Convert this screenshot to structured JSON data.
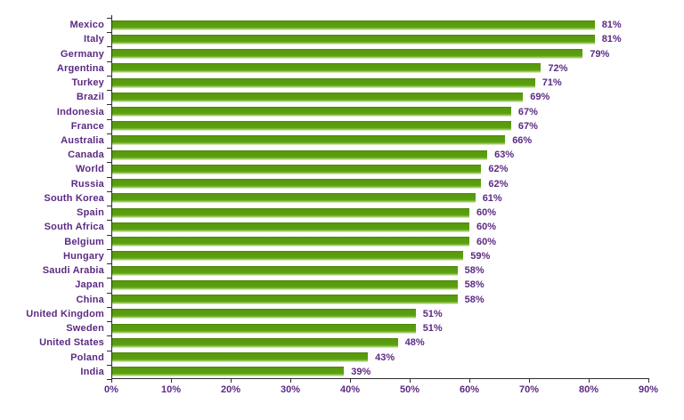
{
  "chart_data": {
    "type": "bar",
    "orientation": "horizontal",
    "title": "",
    "xlabel": "",
    "ylabel": "",
    "categories": [
      "Mexico",
      "Italy",
      "Germany",
      "Argentina",
      "Turkey",
      "Brazil",
      "Indonesia",
      "France",
      "Australia",
      "Canada",
      "World",
      "Russia",
      "South Korea",
      "Spain",
      "South Africa",
      "Belgium",
      "Hungary",
      "Saudi Arabia",
      "Japan",
      "China",
      "United Kingdom",
      "Sweden",
      "United States",
      "Poland",
      "India"
    ],
    "values": [
      81,
      81,
      79,
      72,
      71,
      69,
      67,
      67,
      66,
      63,
      62,
      62,
      61,
      60,
      60,
      60,
      59,
      58,
      58,
      58,
      51,
      51,
      48,
      43,
      39
    ],
    "data_labels": [
      "81%",
      "81%",
      "79%",
      "72%",
      "71%",
      "69%",
      "67%",
      "67%",
      "66%",
      "63%",
      "62%",
      "62%",
      "61%",
      "60%",
      "60%",
      "60%",
      "59%",
      "58%",
      "58%",
      "58%",
      "51%",
      "51%",
      "48%",
      "43%",
      "39%"
    ],
    "value_suffix": "%",
    "xlim": [
      0,
      90
    ],
    "x_tick_labels": [
      "0%",
      "10%",
      "20%",
      "30%",
      "40%",
      "50%",
      "60%",
      "70%",
      "80%",
      "90%"
    ],
    "grid": "off",
    "legend": "none",
    "bar_color": "#5aa00f",
    "text_color": "#5b2a83",
    "axis_color": "#2e2e2e"
  }
}
